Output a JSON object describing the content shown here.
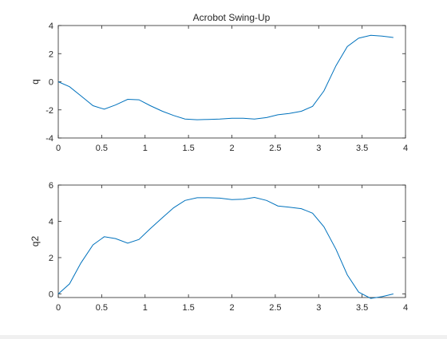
{
  "figure_title": "Acrobot Swing-Up",
  "chart_data": [
    {
      "type": "line",
      "title": "Acrobot Swing-Up",
      "xlabel": "",
      "ylabel": "q",
      "xlim": [
        0,
        4
      ],
      "ylim": [
        -4,
        4
      ],
      "xticks": [
        "0",
        "0.5",
        "1",
        "1.5",
        "2",
        "2.5",
        "3",
        "3.5",
        "4"
      ],
      "yticks": [
        "-4",
        "-2",
        "0",
        "2",
        "4"
      ],
      "grid": false,
      "series": [
        {
          "color": "#0072BD",
          "x": [
            0,
            0.13,
            0.26,
            0.4,
            0.53,
            0.66,
            0.8,
            0.93,
            1.06,
            1.2,
            1.33,
            1.46,
            1.6,
            1.73,
            1.86,
            2.0,
            2.13,
            2.26,
            2.4,
            2.53,
            2.66,
            2.8,
            2.93,
            3.06,
            3.2,
            3.33,
            3.46,
            3.6,
            3.73,
            3.86
          ],
          "y": [
            0.0,
            -0.35,
            -1.0,
            -1.7,
            -1.95,
            -1.65,
            -1.25,
            -1.28,
            -1.7,
            -2.1,
            -2.4,
            -2.65,
            -2.7,
            -2.68,
            -2.65,
            -2.6,
            -2.6,
            -2.65,
            -2.55,
            -2.35,
            -2.25,
            -2.1,
            -1.75,
            -0.65,
            1.15,
            2.5,
            3.1,
            3.3,
            3.25,
            3.15
          ]
        }
      ]
    },
    {
      "type": "line",
      "title": "",
      "xlabel": "",
      "ylabel": "q2",
      "xlim": [
        0,
        4
      ],
      "ylim": [
        -0.2,
        6
      ],
      "xticks": [
        "0",
        "0.5",
        "1",
        "1.5",
        "2",
        "2.5",
        "3",
        "3.5",
        "4"
      ],
      "yticks": [
        "0",
        "2",
        "4",
        "6"
      ],
      "grid": false,
      "series": [
        {
          "color": "#0072BD",
          "x": [
            0,
            0.13,
            0.26,
            0.4,
            0.53,
            0.66,
            0.8,
            0.93,
            1.06,
            1.2,
            1.33,
            1.46,
            1.6,
            1.73,
            1.86,
            2.0,
            2.13,
            2.26,
            2.4,
            2.53,
            2.66,
            2.8,
            2.93,
            3.06,
            3.2,
            3.33,
            3.46,
            3.6,
            3.73,
            3.86
          ],
          "y": [
            0.0,
            0.55,
            1.7,
            2.7,
            3.15,
            3.05,
            2.8,
            3.0,
            3.6,
            4.2,
            4.75,
            5.15,
            5.3,
            5.3,
            5.28,
            5.2,
            5.22,
            5.32,
            5.15,
            4.85,
            4.78,
            4.7,
            4.45,
            3.7,
            2.45,
            1.05,
            0.1,
            -0.25,
            -0.15,
            0.0
          ]
        }
      ]
    }
  ]
}
